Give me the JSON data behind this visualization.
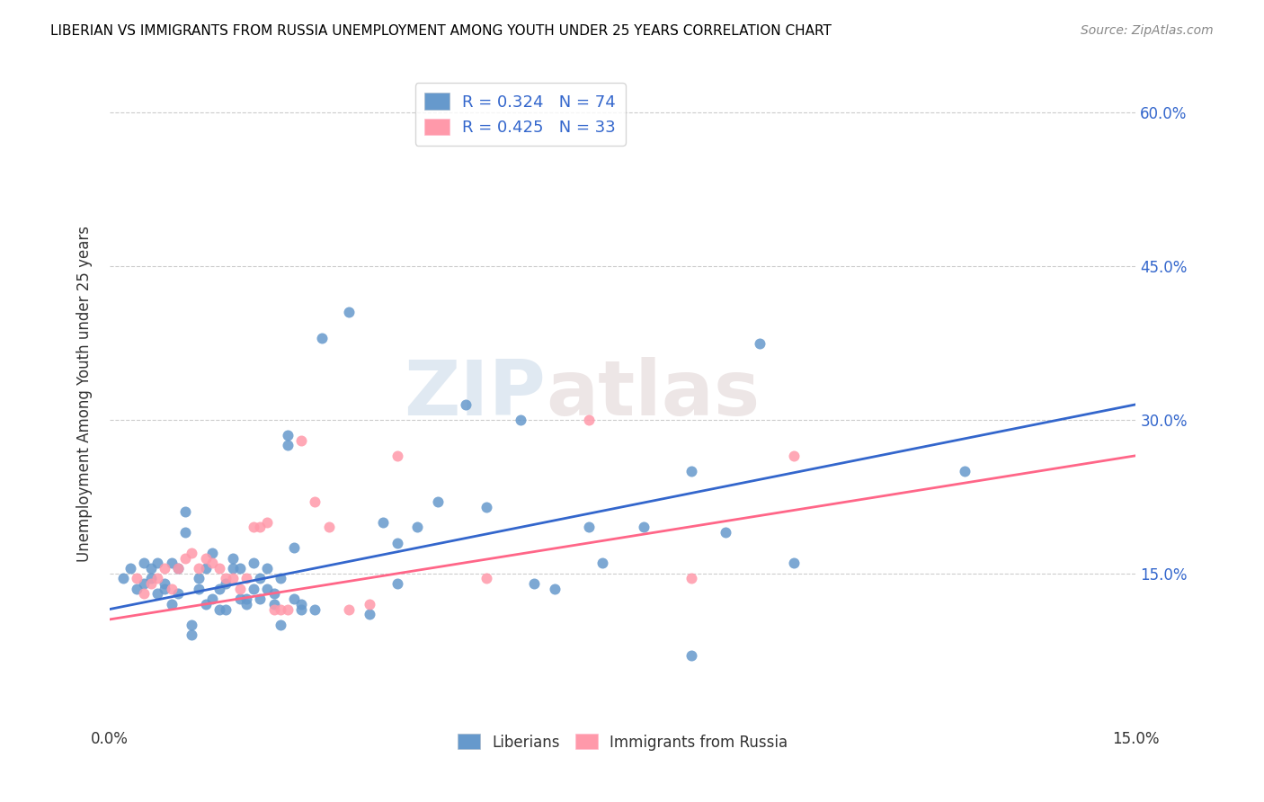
{
  "title": "LIBERIAN VS IMMIGRANTS FROM RUSSIA UNEMPLOYMENT AMONG YOUTH UNDER 25 YEARS CORRELATION CHART",
  "source": "Source: ZipAtlas.com",
  "ylabel": "Unemployment Among Youth under 25 years",
  "xmin": 0.0,
  "xmax": 0.15,
  "ymin": 0.0,
  "ymax": 0.65,
  "yticks": [
    0.15,
    0.3,
    0.45,
    0.6
  ],
  "ytick_labels": [
    "15.0%",
    "30.0%",
    "45.0%",
    "60.0%"
  ],
  "xticks": [
    0.0,
    0.025,
    0.05,
    0.075,
    0.1,
    0.125,
    0.15
  ],
  "xtick_labels": [
    "0.0%",
    "",
    "",
    "",
    "",
    "",
    "15.0%"
  ],
  "blue_color": "#6699CC",
  "pink_color": "#FF99AA",
  "trendline_blue": "#3366CC",
  "trendline_pink": "#FF6688",
  "watermark_zip": "ZIP",
  "watermark_atlas": "atlas",
  "blue_scatter": [
    [
      0.002,
      0.145
    ],
    [
      0.003,
      0.155
    ],
    [
      0.004,
      0.135
    ],
    [
      0.005,
      0.16
    ],
    [
      0.005,
      0.14
    ],
    [
      0.006,
      0.145
    ],
    [
      0.006,
      0.155
    ],
    [
      0.007,
      0.13
    ],
    [
      0.007,
      0.16
    ],
    [
      0.008,
      0.135
    ],
    [
      0.008,
      0.14
    ],
    [
      0.009,
      0.12
    ],
    [
      0.009,
      0.16
    ],
    [
      0.01,
      0.13
    ],
    [
      0.01,
      0.155
    ],
    [
      0.011,
      0.19
    ],
    [
      0.011,
      0.21
    ],
    [
      0.012,
      0.09
    ],
    [
      0.012,
      0.1
    ],
    [
      0.013,
      0.135
    ],
    [
      0.013,
      0.145
    ],
    [
      0.014,
      0.155
    ],
    [
      0.014,
      0.12
    ],
    [
      0.015,
      0.125
    ],
    [
      0.015,
      0.17
    ],
    [
      0.016,
      0.135
    ],
    [
      0.016,
      0.115
    ],
    [
      0.017,
      0.115
    ],
    [
      0.017,
      0.14
    ],
    [
      0.018,
      0.155
    ],
    [
      0.018,
      0.165
    ],
    [
      0.019,
      0.125
    ],
    [
      0.019,
      0.155
    ],
    [
      0.02,
      0.12
    ],
    [
      0.02,
      0.125
    ],
    [
      0.021,
      0.16
    ],
    [
      0.021,
      0.135
    ],
    [
      0.022,
      0.125
    ],
    [
      0.022,
      0.145
    ],
    [
      0.023,
      0.155
    ],
    [
      0.023,
      0.135
    ],
    [
      0.024,
      0.13
    ],
    [
      0.024,
      0.12
    ],
    [
      0.025,
      0.145
    ],
    [
      0.025,
      0.1
    ],
    [
      0.026,
      0.275
    ],
    [
      0.026,
      0.285
    ],
    [
      0.027,
      0.125
    ],
    [
      0.027,
      0.175
    ],
    [
      0.028,
      0.115
    ],
    [
      0.028,
      0.12
    ],
    [
      0.03,
      0.115
    ],
    [
      0.031,
      0.38
    ],
    [
      0.035,
      0.405
    ],
    [
      0.038,
      0.11
    ],
    [
      0.04,
      0.2
    ],
    [
      0.042,
      0.14
    ],
    [
      0.042,
      0.18
    ],
    [
      0.045,
      0.195
    ],
    [
      0.048,
      0.22
    ],
    [
      0.052,
      0.315
    ],
    [
      0.055,
      0.215
    ],
    [
      0.06,
      0.3
    ],
    [
      0.062,
      0.14
    ],
    [
      0.065,
      0.135
    ],
    [
      0.07,
      0.195
    ],
    [
      0.072,
      0.16
    ],
    [
      0.078,
      0.195
    ],
    [
      0.085,
      0.25
    ],
    [
      0.085,
      0.07
    ],
    [
      0.09,
      0.19
    ],
    [
      0.095,
      0.375
    ],
    [
      0.1,
      0.16
    ],
    [
      0.125,
      0.25
    ]
  ],
  "pink_scatter": [
    [
      0.004,
      0.145
    ],
    [
      0.005,
      0.13
    ],
    [
      0.006,
      0.14
    ],
    [
      0.007,
      0.145
    ],
    [
      0.008,
      0.155
    ],
    [
      0.009,
      0.135
    ],
    [
      0.01,
      0.155
    ],
    [
      0.011,
      0.165
    ],
    [
      0.012,
      0.17
    ],
    [
      0.013,
      0.155
    ],
    [
      0.014,
      0.165
    ],
    [
      0.015,
      0.16
    ],
    [
      0.016,
      0.155
    ],
    [
      0.017,
      0.145
    ],
    [
      0.018,
      0.145
    ],
    [
      0.019,
      0.135
    ],
    [
      0.02,
      0.145
    ],
    [
      0.021,
      0.195
    ],
    [
      0.022,
      0.195
    ],
    [
      0.023,
      0.2
    ],
    [
      0.024,
      0.115
    ],
    [
      0.025,
      0.115
    ],
    [
      0.026,
      0.115
    ],
    [
      0.028,
      0.28
    ],
    [
      0.03,
      0.22
    ],
    [
      0.032,
      0.195
    ],
    [
      0.035,
      0.115
    ],
    [
      0.038,
      0.12
    ],
    [
      0.042,
      0.265
    ],
    [
      0.055,
      0.145
    ],
    [
      0.07,
      0.3
    ],
    [
      0.085,
      0.145
    ],
    [
      0.1,
      0.265
    ]
  ],
  "blue_trend_x": [
    0.0,
    0.15
  ],
  "blue_trend_y": [
    0.115,
    0.315
  ],
  "pink_trend_x": [
    0.0,
    0.15
  ],
  "pink_trend_y": [
    0.105,
    0.265
  ]
}
